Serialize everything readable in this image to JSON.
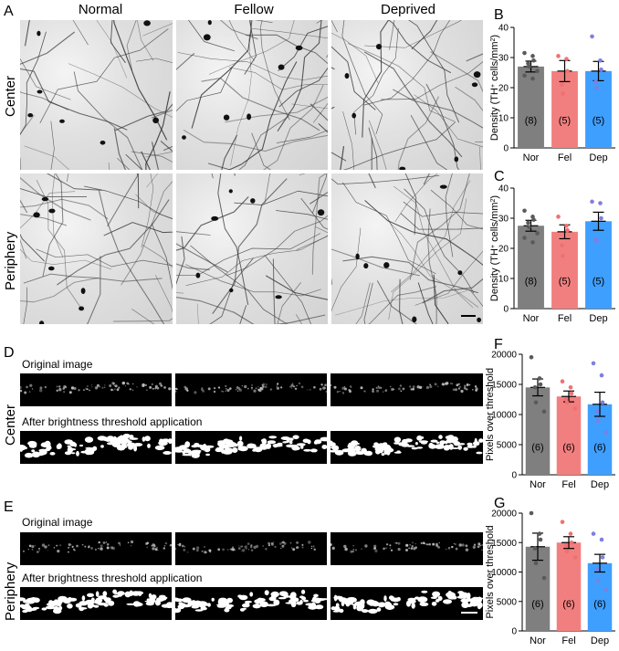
{
  "panels": {
    "A": "A",
    "B": "B",
    "C": "C",
    "D": "D",
    "E": "E",
    "F": "F",
    "G": "G"
  },
  "microscopy": {
    "columns": [
      "Normal",
      "Fellow",
      "Deprived"
    ],
    "rows": [
      "Center",
      "Periphery"
    ]
  },
  "strips": {
    "original_label": "Original image",
    "threshold_label": "After brightness threshold application",
    "rows": [
      "Center",
      "Periphery"
    ]
  },
  "chart_data": [
    {
      "id": "B",
      "type": "bar",
      "categories": [
        "Nor",
        "Fel",
        "Dep"
      ],
      "values": [
        27,
        25.5,
        25.5
      ],
      "errors": [
        1.8,
        3.5,
        3.2
      ],
      "n_labels": [
        "(8)",
        "(5)",
        "(5)"
      ],
      "points": [
        [
          31.5,
          30.5,
          29,
          28,
          27,
          25.5,
          24,
          23
        ],
        [
          30.5,
          29.5,
          25.5,
          21,
          18
        ],
        [
          37,
          29,
          26,
          22,
          20
        ]
      ],
      "ylabel": "Density (TH+ cells/mm2)",
      "ylabel_parts": [
        "Density (TH",
        "+",
        " cells/mm",
        "2",
        ")"
      ],
      "ylim": [
        0,
        40
      ],
      "yticks": [
        0,
        10,
        20,
        30,
        40
      ],
      "colors": [
        "#7f7f7f",
        "#f27f7f",
        "#3f9fff"
      ],
      "point_colors": [
        "#5a5a5a",
        "#f07070",
        "#7f7fe0"
      ]
    },
    {
      "id": "C",
      "type": "bar",
      "categories": [
        "Nor",
        "Fel",
        "Dep"
      ],
      "values": [
        27.5,
        25.5,
        29
      ],
      "errors": [
        1.8,
        2.3,
        3
      ],
      "n_labels": [
        "(8)",
        "(5)",
        "(5)"
      ],
      "points": [
        [
          32.5,
          30.5,
          29.5,
          28.5,
          27,
          25,
          23.5,
          22
        ],
        [
          30.5,
          27.5,
          26,
          21,
          17.5
        ],
        [
          35.5,
          35,
          30,
          23,
          22.5
        ]
      ],
      "ylabel": "Density (TH+ cells/mm2)",
      "ylabel_parts": [
        "Density (TH",
        "+",
        " cells/mm",
        "2",
        ")"
      ],
      "ylim": [
        0,
        40
      ],
      "yticks": [
        0,
        10,
        20,
        30,
        40
      ],
      "colors": [
        "#7f7f7f",
        "#f27f7f",
        "#3f9fff"
      ],
      "point_colors": [
        "#5a5a5a",
        "#f07070",
        "#7f7fe0"
      ]
    },
    {
      "id": "F",
      "type": "bar",
      "categories": [
        "Nor",
        "Fel",
        "Dep"
      ],
      "values": [
        14500,
        13000,
        11700
      ],
      "errors": [
        1400,
        900,
        2000
      ],
      "n_labels": [
        "(6)",
        "(6)",
        "(6)"
      ],
      "points": [
        [
          19500,
          16000,
          15000,
          14500,
          12000,
          10500
        ],
        [
          15500,
          14500,
          13500,
          12500,
          12000,
          11000
        ],
        [
          18500,
          16500,
          12000,
          10500,
          9000,
          7000
        ]
      ],
      "ylabel": "Pixels over threshold",
      "ylim": [
        0,
        20000
      ],
      "yticks": [
        0,
        5000,
        10000,
        15000,
        20000
      ],
      "colors": [
        "#7f7f7f",
        "#f27f7f",
        "#3f9fff"
      ],
      "point_colors": [
        "#5a5a5a",
        "#f07070",
        "#7f7fe0"
      ]
    },
    {
      "id": "G",
      "type": "bar",
      "categories": [
        "Nor",
        "Fel",
        "Dep"
      ],
      "values": [
        14300,
        15000,
        11500
      ],
      "errors": [
        2300,
        1000,
        1500
      ],
      "n_labels": [
        "(6)",
        "(6)",
        "(6)"
      ],
      "points": [
        [
          20000,
          16500,
          15500,
          14000,
          11500,
          9000
        ],
        [
          18500,
          16500,
          15000,
          14500,
          13500,
          12500
        ],
        [
          16500,
          15500,
          12500,
          10500,
          8500,
          7000
        ]
      ],
      "ylabel": "Pixels over threshold",
      "ylim": [
        0,
        20000
      ],
      "yticks": [
        0,
        5000,
        10000,
        15000,
        20000
      ],
      "colors": [
        "#7f7f7f",
        "#f27f7f",
        "#3f9fff"
      ],
      "point_colors": [
        "#5a5a5a",
        "#f07070",
        "#7f7fe0"
      ]
    }
  ]
}
